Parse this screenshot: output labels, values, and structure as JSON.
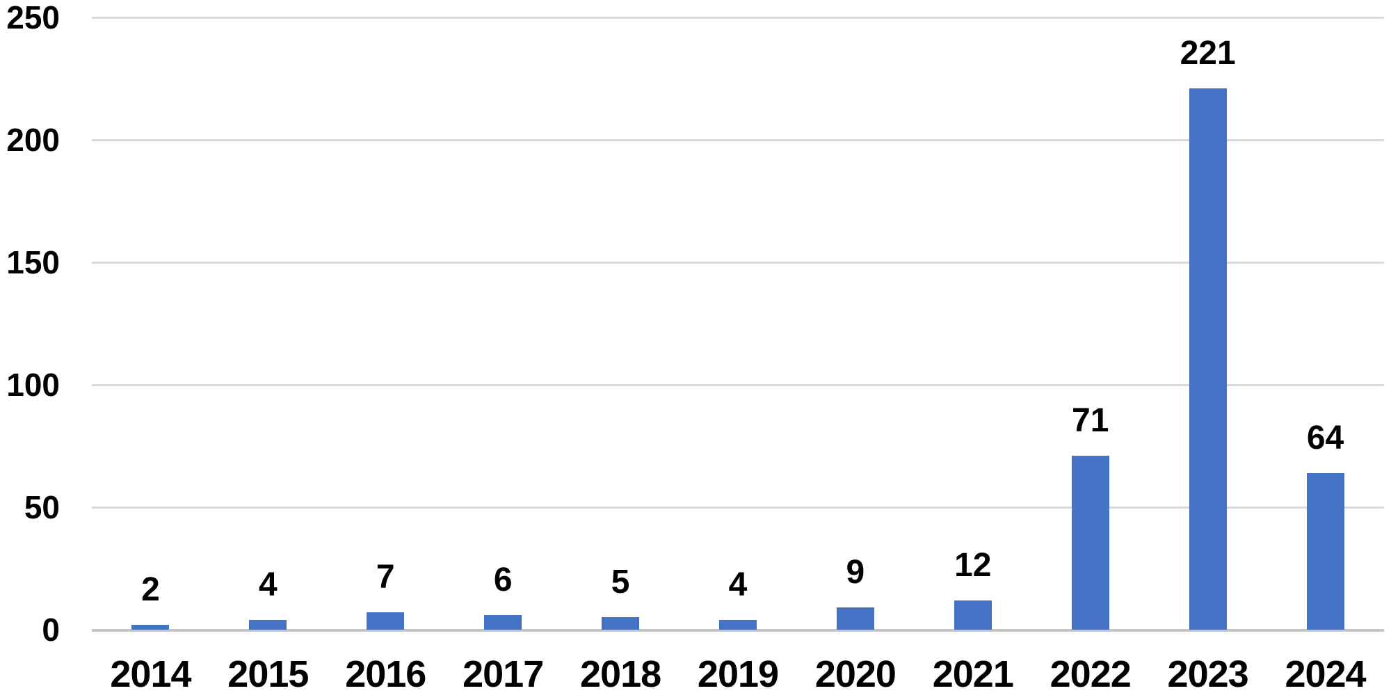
{
  "chart_data": {
    "type": "bar",
    "title": "",
    "xlabel": "",
    "ylabel": "",
    "categories": [
      "2014",
      "2015",
      "2016",
      "2017",
      "2018",
      "2019",
      "2020",
      "2021",
      "2022",
      "2023",
      "2024"
    ],
    "values": [
      2,
      4,
      7,
      6,
      5,
      4,
      9,
      12,
      71,
      221,
      64
    ],
    "ylim": [
      0,
      250
    ],
    "yticks": [
      0,
      50,
      100,
      150,
      200,
      250
    ],
    "grid": true,
    "legend": false,
    "data_labels_shown": true,
    "colors": {
      "bar": "#4472C4",
      "gridline": "#D9D9D9",
      "axis_line": "#C6C6C6",
      "text": "#000000",
      "background": "#FFFFFF"
    }
  }
}
